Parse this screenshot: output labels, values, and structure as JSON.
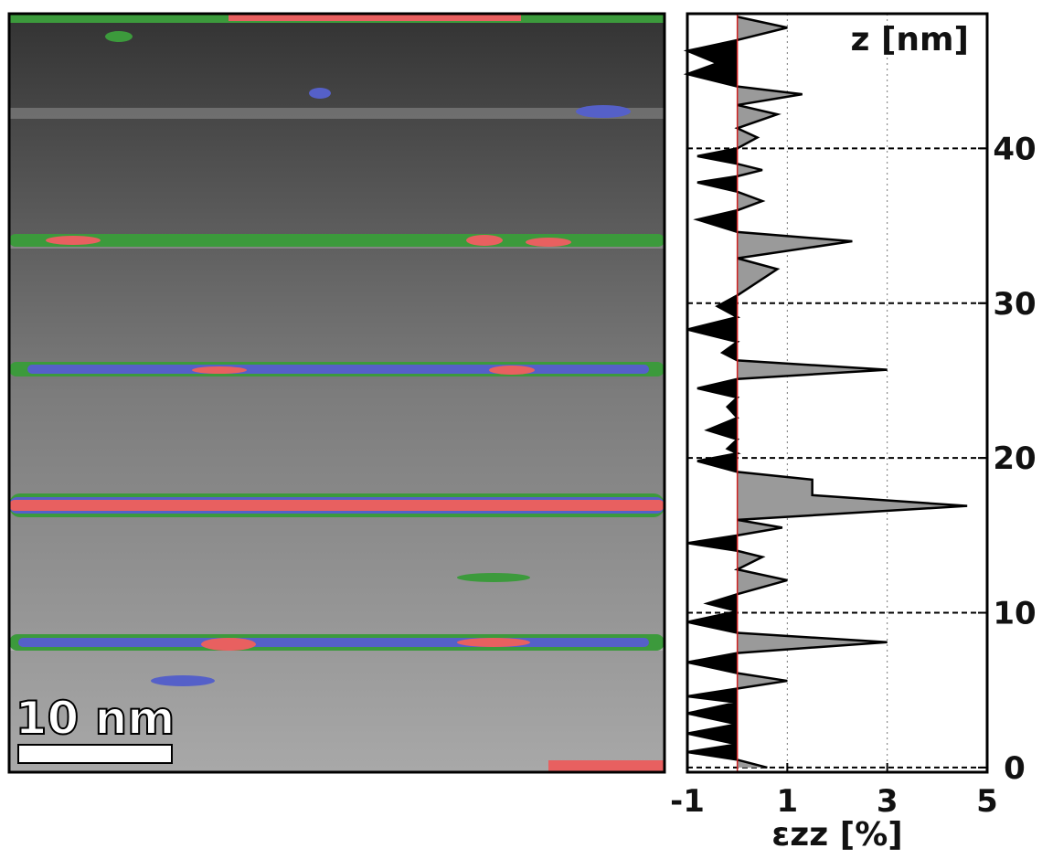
{
  "chart_data": {
    "type": "area",
    "orientation": "horizontal",
    "scale_bar": "10 nm",
    "y_label": "z [nm]",
    "x_label": "εzz [%]",
    "xlim": [
      -1,
      5
    ],
    "xticks": [
      -1,
      1,
      3,
      5
    ],
    "ylim": [
      -0.3,
      48.7
    ],
    "yticks": [
      0,
      10,
      20,
      30,
      40
    ],
    "grid": true,
    "positive_color": "#9a9a9a",
    "negative_color": "#000000",
    "zero_line_color": "#d02020",
    "series": [
      {
        "z": [
          0,
          0.5,
          1,
          1.5,
          2.2,
          2.8,
          3.5,
          4.2,
          4.6,
          5.1,
          5.6,
          6.1,
          6.8,
          7.4,
          8.1,
          8.7,
          9.4,
          10.1,
          10.6,
          11.2,
          12.1,
          12.8,
          13.6,
          14.0,
          14.5,
          15.0,
          15.5,
          16.0,
          16.9,
          17.6,
          18.6,
          19.1,
          19.8,
          20.3,
          20.6,
          21.2,
          21.8,
          22.6,
          23.3,
          23.9,
          24.5,
          25.1,
          25.7,
          26.3,
          26.8,
          27.5,
          28.3,
          29.1,
          29.8,
          30.5,
          32.2,
          32.9,
          34.0,
          34.6,
          35.4,
          36.0,
          36.6,
          37.2,
          37.8,
          38.2,
          38.6,
          39.0,
          39.5,
          40.0,
          40.7,
          41.3,
          42.2,
          42.8,
          43.5,
          44.0,
          44.8,
          45.5,
          46.3,
          47.0,
          47.8,
          48.5
        ],
        "values": [
          0.6,
          0,
          -1,
          0,
          -1,
          0,
          -1,
          0,
          -1,
          0,
          1.0,
          0,
          -1,
          0,
          3.0,
          0,
          -1,
          0,
          -0.6,
          0,
          1.0,
          0,
          0.5,
          0,
          -1,
          0,
          0.9,
          0,
          4.6,
          1.5,
          1.5,
          0,
          -0.8,
          0,
          -0.2,
          0,
          -0.6,
          0,
          -0.2,
          0,
          -0.8,
          0,
          3.0,
          0,
          -0.3,
          0,
          -1,
          0,
          -0.4,
          0,
          0.8,
          0,
          2.3,
          0,
          -0.8,
          0,
          0.5,
          0,
          -0.8,
          0,
          0.5,
          0,
          -0.8,
          0,
          0.4,
          0,
          0.8,
          0,
          1.3,
          0,
          -1,
          -0.4,
          -1,
          0,
          1.0,
          0
        ]
      }
    ]
  }
}
